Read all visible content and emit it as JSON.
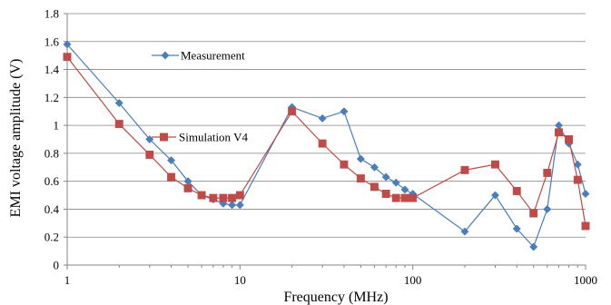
{
  "chart_data": {
    "type": "line",
    "title": "",
    "xlabel": "Frequency (MHz)",
    "ylabel": "EMI voltage amplitude (V)",
    "x_scale": "log",
    "xlim": [
      1,
      1000
    ],
    "ylim": [
      0,
      1.8
    ],
    "x_ticks": [
      1,
      10,
      100,
      1000
    ],
    "x_tick_labels": [
      "1",
      "10",
      "100",
      "1000"
    ],
    "y_ticks": [
      0,
      0.2,
      0.4,
      0.6,
      0.8,
      1,
      1.2,
      1.4,
      1.6,
      1.8
    ],
    "y_tick_labels": [
      "0",
      "0.2",
      "0.4",
      "0.6",
      "0.8",
      "1",
      "1.2",
      "1.4",
      "1.6",
      "1.8"
    ],
    "grid": "horizontal",
    "legend_position": "top-left inside",
    "series": [
      {
        "name": "Measurement",
        "color": "#4a7ebb",
        "marker": "diamond",
        "x": [
          1,
          2,
          3,
          4,
          5,
          6,
          7,
          8,
          9,
          10,
          20,
          30,
          40,
          50,
          60,
          70,
          80,
          90,
          100,
          200,
          300,
          400,
          500,
          600,
          700,
          800,
          900,
          1000
        ],
        "y": [
          1.58,
          1.16,
          0.9,
          0.75,
          0.6,
          0.5,
          0.47,
          0.44,
          0.43,
          0.43,
          1.13,
          1.05,
          1.1,
          0.76,
          0.7,
          0.63,
          0.59,
          0.54,
          0.51,
          0.24,
          0.5,
          0.26,
          0.13,
          0.4,
          1.0,
          0.87,
          0.72,
          0.51
        ]
      },
      {
        "name": "Simulation V4",
        "color": "#be4b48",
        "marker": "square",
        "x": [
          1,
          2,
          3,
          4,
          5,
          6,
          7,
          8,
          9,
          10,
          20,
          30,
          40,
          50,
          60,
          70,
          80,
          90,
          100,
          200,
          300,
          400,
          500,
          600,
          700,
          800,
          900,
          1000
        ],
        "y": [
          1.49,
          1.01,
          0.79,
          0.63,
          0.55,
          0.5,
          0.48,
          0.48,
          0.48,
          0.5,
          1.1,
          0.87,
          0.72,
          0.62,
          0.56,
          0.51,
          0.48,
          0.48,
          0.48,
          0.68,
          0.72,
          0.53,
          0.37,
          0.66,
          0.95,
          0.9,
          0.61,
          0.28
        ]
      }
    ]
  }
}
